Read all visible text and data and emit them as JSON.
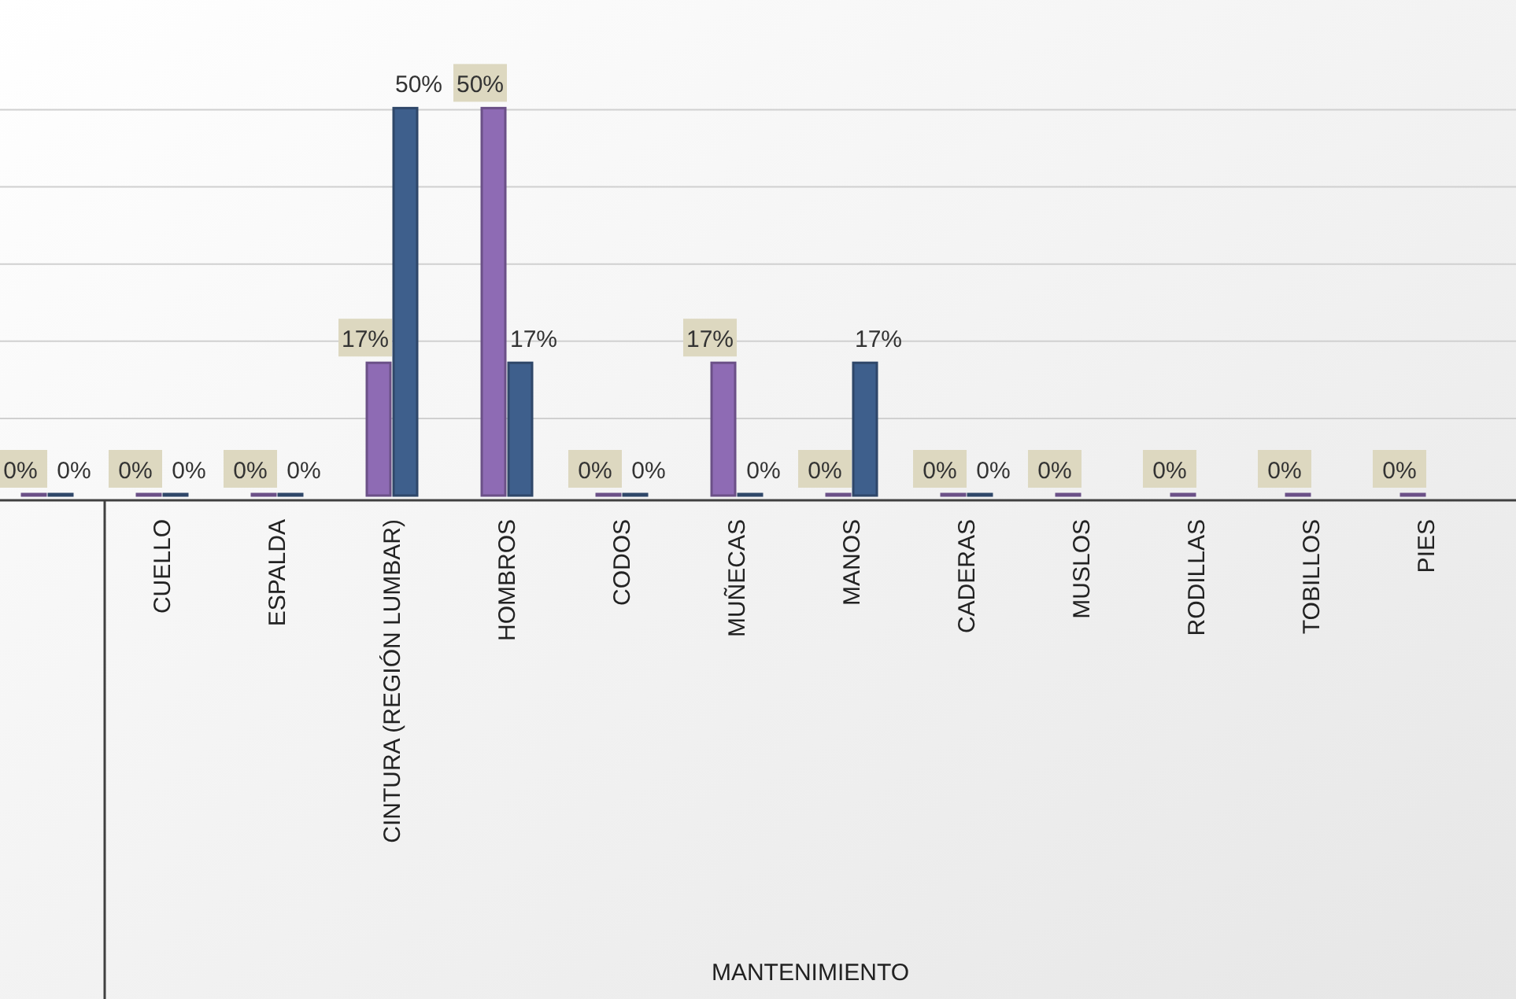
{
  "chart_data": {
    "type": "bar",
    "xlabel": "MANTENIMIENTO",
    "categories": [
      null,
      "CUELLO",
      "ESPALDA",
      "CINTURA (REGIÓN LUMBAR)",
      "HOMBROS",
      "CODOS",
      "MUÑECAS",
      "MANOS",
      "CADERAS",
      "MUSLOS",
      "RODILLAS",
      "TOBILLOS",
      "PIES"
    ],
    "series": [
      {
        "color": "#8e6bb4",
        "values": [
          0,
          0,
          0,
          17,
          50,
          0,
          17,
          0,
          0,
          0,
          0,
          0,
          0
        ],
        "value_labels": [
          "0%",
          "0%",
          "0%",
          "17%",
          "50%",
          "0%",
          "17%",
          "0%",
          "0%",
          "0%",
          "0%",
          "0%",
          "0%"
        ]
      },
      {
        "color": "#3e5f8c",
        "values": [
          0,
          0,
          0,
          50,
          17,
          0,
          0,
          17,
          0,
          null,
          null,
          null,
          null
        ],
        "value_labels": [
          "0%",
          "0%",
          "0%",
          "50%",
          "17%",
          "0%",
          "0%",
          "17%",
          "0%",
          null,
          null,
          null,
          null
        ]
      }
    ],
    "ylim": [
      0,
      64
    ],
    "yticks": [
      {
        "value": 10,
        "label": null
      },
      {
        "value": 20,
        "label": null
      },
      {
        "value": 30,
        "label": null
      },
      {
        "value": 40,
        "label": null
      },
      {
        "value": 50,
        "label": null
      }
    ],
    "grid": "y",
    "tick_labels": "x"
  }
}
